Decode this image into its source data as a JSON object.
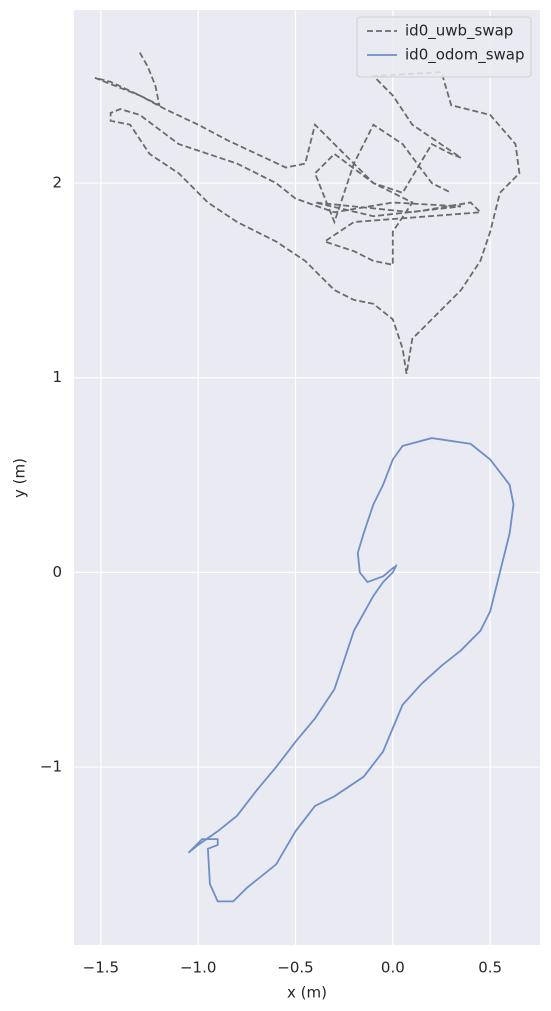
{
  "chart_data": {
    "type": "line",
    "xlabel": "x (m)",
    "ylabel": "y (m)",
    "xlim": [
      -1.638,
      0.756
    ],
    "ylim": [
      -1.914,
      2.889
    ],
    "xticks": [
      {
        "value": -1.5,
        "label": "−1.5"
      },
      {
        "value": -1.0,
        "label": "−1.0"
      },
      {
        "value": -0.5,
        "label": "−0.5"
      },
      {
        "value": 0.0,
        "label": "0.0"
      },
      0.5
    ],
    "yticks": [
      {
        "value": -1,
        "label": "−1"
      },
      0,
      1,
      2
    ],
    "grid": true,
    "legend": "upper right",
    "series": [
      {
        "name": "id0_uwb_swap",
        "color": "#6b6b6b",
        "linestyle": "dashed",
        "x": [
          -1.3,
          -1.26,
          -1.22,
          -1.2,
          -1.3,
          -1.45,
          -1.53,
          -1.3,
          -1.17,
          -1.0,
          -0.85,
          -0.7,
          -0.55,
          -0.45,
          -0.4,
          -0.3,
          -0.1,
          0.05,
          0.2,
          0.3,
          0.35,
          0.1,
          0.0,
          -0.1,
          0.25,
          0.3,
          0.5,
          0.63,
          0.65,
          0.55,
          0.5,
          0.45,
          0.35,
          0.2,
          0.1,
          0.07,
          0.05,
          0.0,
          -0.1,
          -0.2,
          -0.3,
          -0.35,
          -0.45,
          -0.6,
          -0.8,
          -0.95,
          -1.1,
          -1.25,
          -1.35,
          -1.45,
          -1.45,
          -1.4,
          -1.3,
          -1.1,
          -0.8,
          -0.6,
          -0.5,
          -0.3,
          0.0,
          0.35,
          -0.1,
          -0.4,
          0.1,
          0.4,
          0.45,
          -0.2,
          -0.35,
          -0.2,
          -0.1,
          0.0,
          0.0,
          0.1,
          -0.1,
          -0.3,
          -0.4,
          -0.3,
          -0.2,
          -0.1,
          0.05,
          0.2,
          0.3
        ],
        "y": [
          2.67,
          2.6,
          2.5,
          2.4,
          2.45,
          2.52,
          2.54,
          2.45,
          2.38,
          2.3,
          2.22,
          2.15,
          2.08,
          2.1,
          2.3,
          2.2,
          2.0,
          1.95,
          2.2,
          2.15,
          2.13,
          2.3,
          2.45,
          2.55,
          2.57,
          2.4,
          2.35,
          2.2,
          2.05,
          1.95,
          1.75,
          1.6,
          1.45,
          1.3,
          1.2,
          1.02,
          1.15,
          1.3,
          1.38,
          1.4,
          1.45,
          1.5,
          1.6,
          1.7,
          1.8,
          1.9,
          2.05,
          2.15,
          2.3,
          2.32,
          2.36,
          2.38,
          2.35,
          2.2,
          2.1,
          2.0,
          1.92,
          1.85,
          1.9,
          1.88,
          1.83,
          1.9,
          1.85,
          1.9,
          1.85,
          1.8,
          1.7,
          1.65,
          1.6,
          1.58,
          1.75,
          1.9,
          2.0,
          2.15,
          2.05,
          1.8,
          2.1,
          2.3,
          2.2,
          2.0,
          1.95
        ]
      },
      {
        "name": "id0_odom_swap",
        "color": "#6d8fc6",
        "linestyle": "solid",
        "x": [
          0.02,
          0.0,
          -0.05,
          -0.1,
          -0.2,
          -0.25,
          -0.3,
          -0.4,
          -0.5,
          -0.6,
          -0.7,
          -0.8,
          -0.9,
          -1.0,
          -1.05,
          -0.98,
          -0.9,
          -0.9,
          -0.95,
          -0.94,
          -0.9,
          -0.82,
          -0.75,
          -0.6,
          -0.5,
          -0.4,
          -0.3,
          -0.15,
          -0.05,
          0.0,
          0.05,
          0.15,
          0.25,
          0.35,
          0.45,
          0.5,
          0.55,
          0.6,
          0.62,
          0.6,
          0.5,
          0.4,
          0.2,
          0.05,
          0.0,
          -0.05,
          -0.1,
          -0.15,
          -0.18,
          -0.17,
          -0.13,
          -0.05,
          0.01
        ],
        "y": [
          0.04,
          0.0,
          -0.05,
          -0.12,
          -0.3,
          -0.45,
          -0.6,
          -0.75,
          -0.87,
          -1.0,
          -1.12,
          -1.25,
          -1.33,
          -1.4,
          -1.44,
          -1.37,
          -1.37,
          -1.4,
          -1.42,
          -1.6,
          -1.69,
          -1.69,
          -1.62,
          -1.5,
          -1.33,
          -1.2,
          -1.15,
          -1.05,
          -0.92,
          -0.8,
          -0.68,
          -0.57,
          -0.48,
          -0.4,
          -0.3,
          -0.2,
          0.0,
          0.2,
          0.35,
          0.45,
          0.58,
          0.66,
          0.69,
          0.65,
          0.58,
          0.45,
          0.35,
          0.2,
          0.1,
          0.0,
          -0.05,
          -0.02,
          0.03
        ]
      }
    ]
  }
}
